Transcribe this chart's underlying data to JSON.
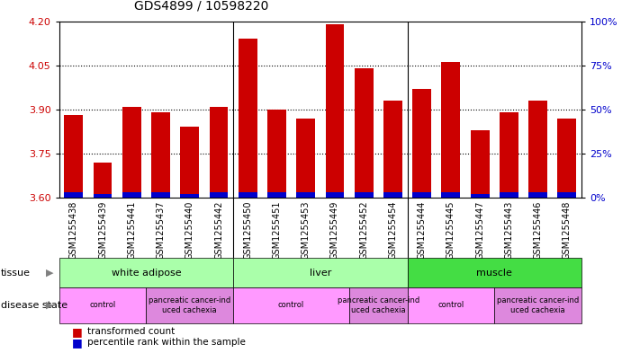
{
  "title": "GDS4899 / 10598220",
  "samples": [
    "GSM1255438",
    "GSM1255439",
    "GSM1255441",
    "GSM1255437",
    "GSM1255440",
    "GSM1255442",
    "GSM1255450",
    "GSM1255451",
    "GSM1255453",
    "GSM1255449",
    "GSM1255452",
    "GSM1255454",
    "GSM1255444",
    "GSM1255445",
    "GSM1255447",
    "GSM1255443",
    "GSM1255446",
    "GSM1255448"
  ],
  "transformed_count": [
    3.88,
    3.72,
    3.91,
    3.89,
    3.84,
    3.91,
    4.14,
    3.9,
    3.87,
    4.19,
    4.04,
    3.93,
    3.97,
    4.06,
    3.83,
    3.89,
    3.93,
    3.87
  ],
  "percentile_rank": [
    3,
    2,
    3,
    3,
    2,
    3,
    3,
    3,
    3,
    3,
    3,
    3,
    3,
    3,
    2,
    3,
    3,
    3
  ],
  "y_min": 3.6,
  "y_max": 4.2,
  "y_ticks": [
    3.6,
    3.75,
    3.9,
    4.05,
    4.2
  ],
  "y2_ticks": [
    0,
    25,
    50,
    75,
    100
  ],
  "bar_color_red": "#cc0000",
  "bar_color_blue": "#0000cc",
  "tissue_groups": [
    {
      "label": "white adipose",
      "start": 0,
      "end": 5,
      "color": "#aaffaa"
    },
    {
      "label": "liver",
      "start": 6,
      "end": 11,
      "color": "#aaffaa"
    },
    {
      "label": "muscle",
      "start": 12,
      "end": 17,
      "color": "#44dd44"
    }
  ],
  "disease_groups": [
    {
      "label": "control",
      "start": 0,
      "end": 2,
      "color": "#ff99ff"
    },
    {
      "label": "pancreatic cancer-ind\nuced cachexia",
      "start": 3,
      "end": 5,
      "color": "#dd88dd"
    },
    {
      "label": "control",
      "start": 6,
      "end": 9,
      "color": "#ff99ff"
    },
    {
      "label": "pancreatic cancer-ind\nuced cachexia",
      "start": 10,
      "end": 11,
      "color": "#dd88dd"
    },
    {
      "label": "control",
      "start": 12,
      "end": 14,
      "color": "#ff99ff"
    },
    {
      "label": "pancreatic cancer-ind\nuced cachexia",
      "start": 15,
      "end": 17,
      "color": "#dd88dd"
    }
  ],
  "background_color": "#ffffff",
  "tick_label_fontsize": 7,
  "title_fontsize": 10,
  "axis_color_left": "#cc0000",
  "axis_color_right": "#0000cc",
  "xticklabel_bg": "#cccccc"
}
